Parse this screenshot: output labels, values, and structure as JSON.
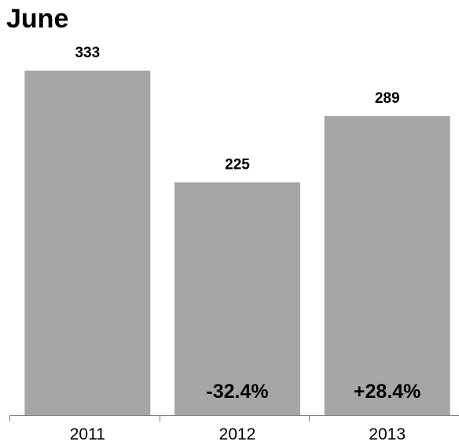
{
  "chart_data": {
    "type": "bar",
    "title": "June",
    "xlabel": "",
    "ylabel": "",
    "categories": [
      "2011",
      "2012",
      "2013"
    ],
    "values": [
      333,
      225,
      289
    ],
    "data_labels": [
      "333",
      "225",
      "289"
    ],
    "change_labels": [
      "",
      "-32.4%",
      "+28.4%"
    ],
    "ylim": [
      0,
      370
    ],
    "grid": false,
    "legend": "none",
    "colors": {
      "bar": "#a6a6a6",
      "axis": "#808080",
      "text": "#000000"
    }
  }
}
